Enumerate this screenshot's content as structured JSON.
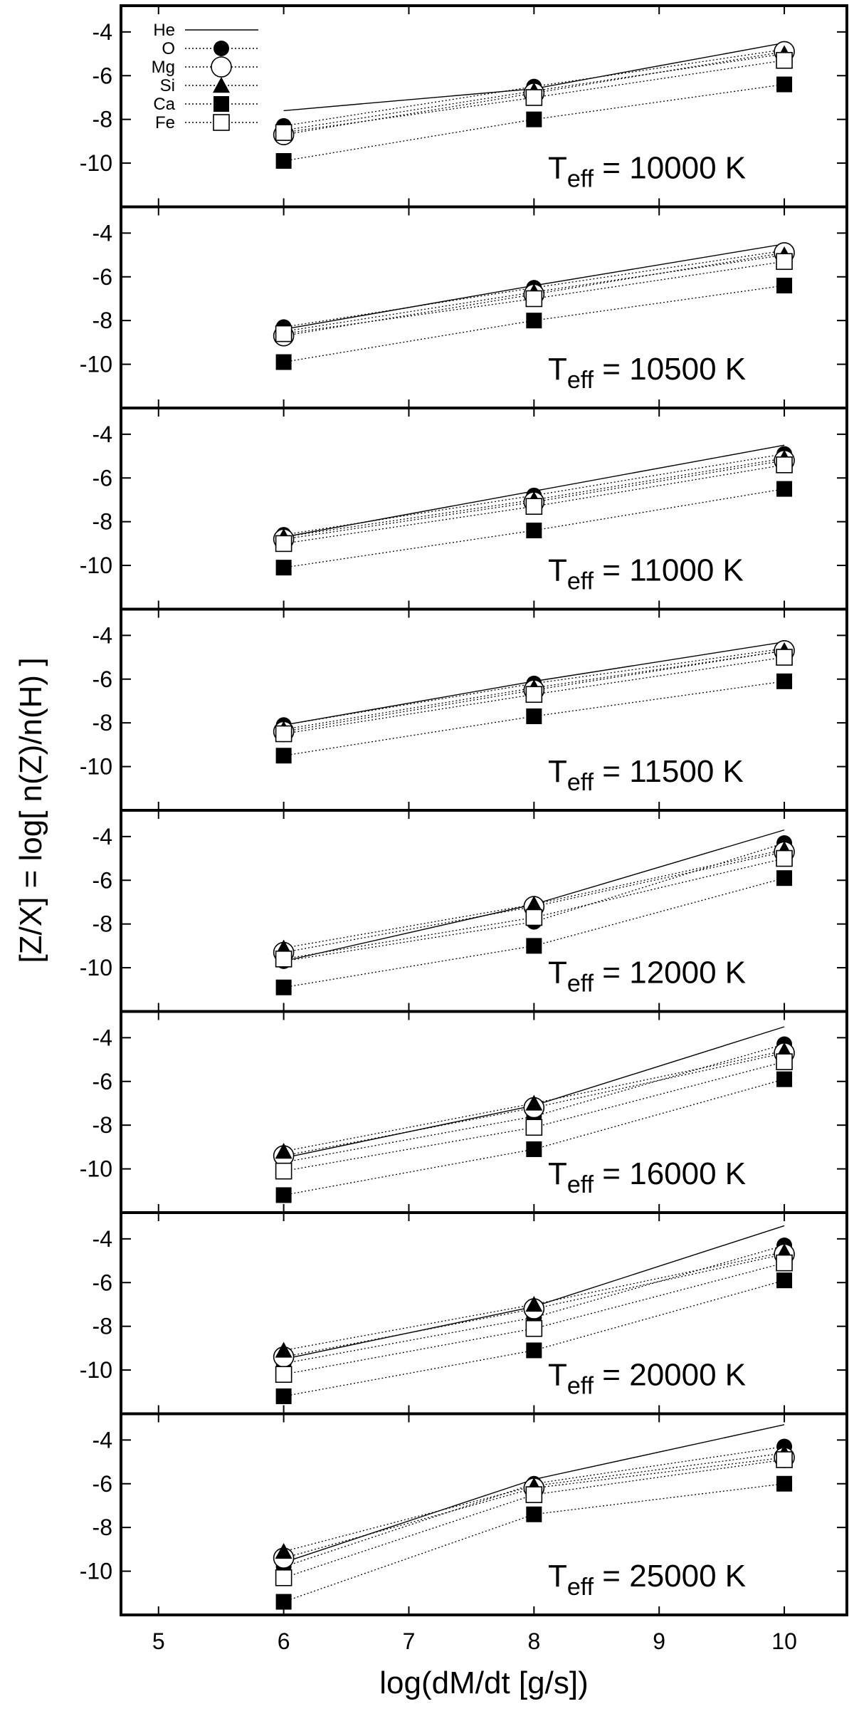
{
  "chart_data": {
    "type": "line",
    "ylabel": "[Z/X] = log[ n(Z)/n(H) ]",
    "xlabel": "log(dM/dt [g/s])",
    "xlim": [
      4.7,
      10.5
    ],
    "ylim": [
      -12,
      -2.8
    ],
    "x_ticks": [
      {
        "value": 5,
        "label": "5"
      },
      {
        "value": 6,
        "label": "6"
      },
      {
        "value": 7,
        "label": "7"
      },
      {
        "value": 8,
        "label": "8"
      },
      {
        "value": 9,
        "label": "9"
      },
      {
        "value": 10,
        "label": "10"
      }
    ],
    "y_ticks": [
      {
        "value": -4,
        "label": "-4"
      },
      {
        "value": -6,
        "label": "-6"
      },
      {
        "value": -8,
        "label": "-8"
      },
      {
        "value": -10,
        "label": "-10"
      }
    ],
    "x": [
      6,
      8,
      10
    ],
    "legend": {
      "placement": "top-left",
      "entries": [
        {
          "name": "He",
          "marker": "none",
          "line": "solid"
        },
        {
          "name": "O",
          "marker": "filled-circle",
          "line": "dotted"
        },
        {
          "name": "Mg",
          "marker": "open-circle",
          "line": "dotted"
        },
        {
          "name": "Si",
          "marker": "filled-triangle",
          "line": "dotted"
        },
        {
          "name": "Ca",
          "marker": "filled-square",
          "line": "dotted"
        },
        {
          "name": "Fe",
          "marker": "open-square",
          "line": "dotted"
        }
      ]
    },
    "panels": [
      {
        "label_prefix": "T",
        "label_sub": "eff",
        "label_value": "= 10000 K",
        "series": [
          {
            "name": "He",
            "values": [
              -7.6,
              -6.6,
              -4.5
            ]
          },
          {
            "name": "O",
            "values": [
              -8.3,
              -6.5,
              -4.8
            ]
          },
          {
            "name": "Mg",
            "values": [
              -8.7,
              -6.8,
              -4.9
            ]
          },
          {
            "name": "Si",
            "values": [
              -8.5,
              -6.7,
              -5.0
            ]
          },
          {
            "name": "Ca",
            "values": [
              -9.9,
              -8.0,
              -6.4
            ]
          },
          {
            "name": "Fe",
            "values": [
              -8.6,
              -7.0,
              -5.3
            ]
          }
        ]
      },
      {
        "label_prefix": "T",
        "label_sub": "eff",
        "label_value": "= 10500 K",
        "series": [
          {
            "name": "He",
            "values": [
              -8.4,
              -6.4,
              -4.5
            ]
          },
          {
            "name": "O",
            "values": [
              -8.3,
              -6.5,
              -4.8
            ]
          },
          {
            "name": "Mg",
            "values": [
              -8.7,
              -6.8,
              -4.9
            ]
          },
          {
            "name": "Si",
            "values": [
              -8.5,
              -6.7,
              -5.0
            ]
          },
          {
            "name": "Ca",
            "values": [
              -9.9,
              -8.0,
              -6.4
            ]
          },
          {
            "name": "Fe",
            "values": [
              -8.6,
              -7.0,
              -5.3
            ]
          }
        ]
      },
      {
        "label_prefix": "T",
        "label_sub": "eff",
        "label_value": "= 11000 K",
        "series": [
          {
            "name": "He",
            "values": [
              -8.7,
              -6.6,
              -4.5
            ]
          },
          {
            "name": "O",
            "values": [
              -8.6,
              -6.8,
              -4.9
            ]
          },
          {
            "name": "Mg",
            "values": [
              -8.8,
              -7.1,
              -5.2
            ]
          },
          {
            "name": "Si",
            "values": [
              -8.7,
              -7.0,
              -5.1
            ]
          },
          {
            "name": "Ca",
            "values": [
              -10.1,
              -8.4,
              -6.5
            ]
          },
          {
            "name": "Fe",
            "values": [
              -9.0,
              -7.3,
              -5.4
            ]
          }
        ]
      },
      {
        "label_prefix": "T",
        "label_sub": "eff",
        "label_value": "= 11500 K",
        "series": [
          {
            "name": "He",
            "values": [
              -8.1,
              -6.1,
              -4.3
            ]
          },
          {
            "name": "O",
            "values": [
              -8.1,
              -6.2,
              -4.6
            ]
          },
          {
            "name": "Mg",
            "values": [
              -8.4,
              -6.5,
              -4.7
            ]
          },
          {
            "name": "Si",
            "values": [
              -8.3,
              -6.4,
              -4.7
            ]
          },
          {
            "name": "Ca",
            "values": [
              -9.5,
              -7.7,
              -6.1
            ]
          },
          {
            "name": "Fe",
            "values": [
              -8.5,
              -6.7,
              -5.0
            ]
          }
        ]
      },
      {
        "label_prefix": "T",
        "label_sub": "eff",
        "label_value": "= 12000 K",
        "series": [
          {
            "name": "He",
            "values": [
              -9.7,
              -7.1,
              -3.7
            ]
          },
          {
            "name": "O",
            "values": [
              -9.7,
              -7.9,
              -4.3
            ]
          },
          {
            "name": "Mg",
            "values": [
              -9.3,
              -7.2,
              -4.7
            ]
          },
          {
            "name": "Si",
            "values": [
              -9.1,
              -7.1,
              -4.6
            ]
          },
          {
            "name": "Ca",
            "values": [
              -10.9,
              -9.0,
              -5.9
            ]
          },
          {
            "name": "Fe",
            "values": [
              -9.6,
              -7.7,
              -5.0
            ]
          }
        ]
      },
      {
        "label_prefix": "T",
        "label_sub": "eff",
        "label_value": "= 16000 K",
        "series": [
          {
            "name": "He",
            "values": [
              -9.5,
              -7.1,
              -3.5
            ]
          },
          {
            "name": "O",
            "values": [
              -9.7,
              -7.6,
              -4.3
            ]
          },
          {
            "name": "Mg",
            "values": [
              -9.4,
              -7.2,
              -4.7
            ]
          },
          {
            "name": "Si",
            "values": [
              -9.2,
              -7.0,
              -4.6
            ]
          },
          {
            "name": "Ca",
            "values": [
              -11.2,
              -9.1,
              -5.9
            ]
          },
          {
            "name": "Fe",
            "values": [
              -10.1,
              -8.1,
              -5.1
            ]
          }
        ]
      },
      {
        "label_prefix": "T",
        "label_sub": "eff",
        "label_value": "= 20000 K",
        "series": [
          {
            "name": "He",
            "values": [
              -9.5,
              -7.1,
              -3.4
            ]
          },
          {
            "name": "O",
            "values": [
              -9.7,
              -7.6,
              -4.3
            ]
          },
          {
            "name": "Mg",
            "values": [
              -9.4,
              -7.2,
              -4.7
            ]
          },
          {
            "name": "Si",
            "values": [
              -9.1,
              -7.0,
              -4.6
            ]
          },
          {
            "name": "Ca",
            "values": [
              -11.2,
              -9.1,
              -5.9
            ]
          },
          {
            "name": "Fe",
            "values": [
              -10.2,
              -8.1,
              -5.1
            ]
          }
        ]
      },
      {
        "label_prefix": "T",
        "label_sub": "eff",
        "label_value": "= 25000 K",
        "series": [
          {
            "name": "He",
            "values": [
              -9.6,
              -5.8,
              -3.3
            ]
          },
          {
            "name": "O",
            "values": [
              -9.8,
              -6.0,
              -4.3
            ]
          },
          {
            "name": "Mg",
            "values": [
              -9.4,
              -6.2,
              -4.8
            ]
          },
          {
            "name": "Si",
            "values": [
              -9.1,
              -6.1,
              -4.6
            ]
          },
          {
            "name": "Ca",
            "values": [
              -11.4,
              -7.4,
              -6.0
            ]
          },
          {
            "name": "Fe",
            "values": [
              -10.3,
              -6.5,
              -4.9
            ]
          }
        ]
      }
    ]
  }
}
